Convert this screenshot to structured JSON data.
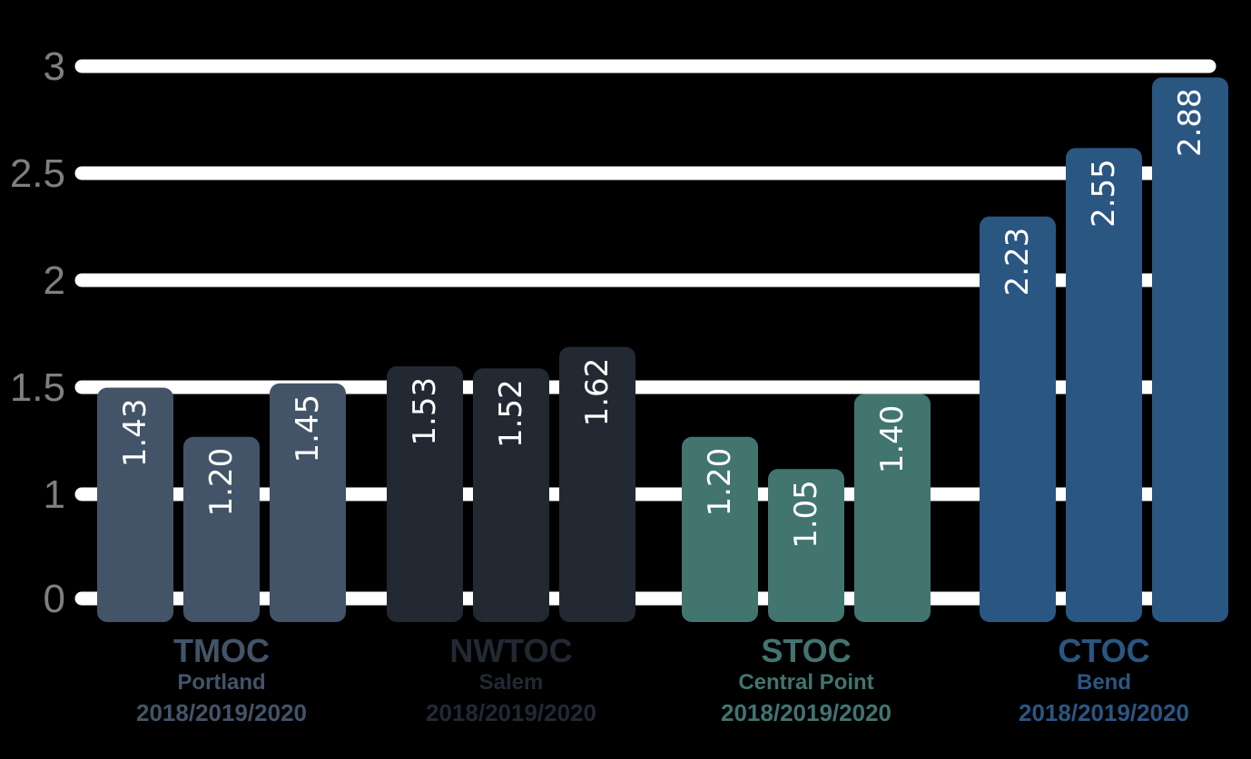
{
  "chart_data": {
    "type": "bar",
    "title": "",
    "xlabel": "",
    "ylabel": "",
    "grid": true,
    "ylim": [
      0,
      3
    ],
    "y_ticks": [
      {
        "value": 0,
        "label": "0"
      },
      {
        "value": 1,
        "label": "1"
      },
      {
        "value": 1.5,
        "label": "1.5"
      },
      {
        "value": 2,
        "label": "2"
      },
      {
        "value": 2.5,
        "label": "2.5"
      },
      {
        "value": 3,
        "label": "3"
      }
    ],
    "groups": [
      {
        "name": "TMOC",
        "location": "Portland",
        "years": "2018/2019/2020",
        "color": "#435468",
        "label_color": "#435468",
        "values": [
          1.43,
          1.2,
          1.45
        ],
        "labels": [
          "1.43",
          "1.20",
          "1.45"
        ]
      },
      {
        "name": "NWTOC",
        "location": "Salem",
        "years": "2018/2019/2020",
        "color": "#222933",
        "label_color": "#222933",
        "values": [
          1.53,
          1.52,
          1.62
        ],
        "labels": [
          "1.53",
          "1.52",
          "1.62"
        ]
      },
      {
        "name": "STOC",
        "location": "Central Point",
        "years": "2018/2019/2020",
        "color": "#427470",
        "label_color": "#427470",
        "values": [
          1.2,
          1.05,
          1.4
        ],
        "labels": [
          "1.20",
          "1.05",
          "1.40"
        ]
      },
      {
        "name": "CTOC",
        "location": "Bend",
        "years": "2018/2019/2020",
        "color": "#2a5682",
        "label_color": "#2a5682",
        "values": [
          2.23,
          2.55,
          2.88
        ],
        "labels": [
          "2.23",
          "2.55",
          "2.88"
        ]
      }
    ]
  }
}
